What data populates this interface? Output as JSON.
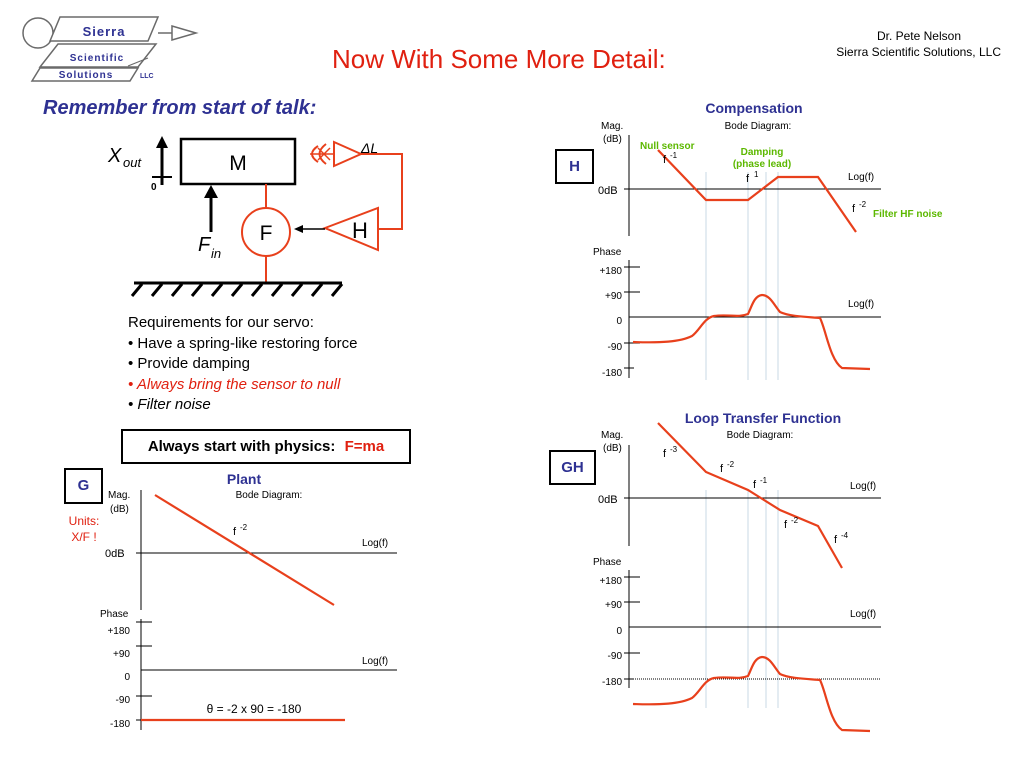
{
  "header": {
    "title": "Now With Some More Detail:",
    "author": "Dr. Pete Nelson",
    "company": "Sierra Scientific Solutions, LLC",
    "logo": {
      "line1": "Sierra",
      "line2": "Scientific",
      "line3": "Solutions",
      "suffix": "LLC"
    }
  },
  "colors": {
    "accent_red": "#e8401c",
    "title_red": "#e02010",
    "blue": "#2e3192",
    "green": "#5cb800"
  },
  "left": {
    "subtitle": "Remember from start of talk:",
    "diagram": {
      "mass_label": "M",
      "force_label": "F",
      "feedback_label": "H",
      "x_label": "X",
      "x_sub": "out",
      "zero_label": "0",
      "f_label": "F",
      "f_sub": "in",
      "delta_label": "ΔL"
    },
    "requirements": {
      "heading": "Requirements for our servo:",
      "items": [
        "• Have a spring-like restoring force",
        "• Provide damping",
        "• Always bring the sensor to null",
        "• Filter noise"
      ]
    },
    "physics_box": {
      "label": "Always start with physics:",
      "formula": "F=ma"
    },
    "plant": {
      "tag": "G",
      "units": "Units:",
      "units2": "X/F !",
      "title": "Plant",
      "bode_caption": "Bode Diagram:",
      "mag_label": "Mag.",
      "db_label": "(dB)",
      "zero_db": "0dB",
      "logf": "Log(f)",
      "slope_f": "f",
      "slope_exp": "-2",
      "phase_label": "Phase",
      "phase_ticks": [
        "+180",
        "+90",
        "0",
        "-90",
        "-180"
      ],
      "theta_eq": "θ = -2 x 90 = -180"
    }
  },
  "right": {
    "compensation": {
      "tag": "H",
      "title": "Compensation",
      "bode_caption": "Bode Diagram:",
      "mag_label": "Mag.",
      "db_label": "(dB)",
      "zero_db": "0dB",
      "logf": "Log(f)",
      "null_sensor": "Null sensor",
      "damping1": "Damping",
      "damping2": "(phase lead)",
      "filter_hf": "Filter HF noise",
      "slopes": [
        {
          "f": "f",
          "exp": "-1"
        },
        {
          "f": "f",
          "exp": "1"
        },
        {
          "f": "f",
          "exp": "-2"
        }
      ],
      "phase_label": "Phase",
      "phase_ticks": [
        "+180",
        "+90",
        "0",
        "-90",
        "-180"
      ],
      "phase_logf": "Log(f)"
    },
    "loop": {
      "tag": "GH",
      "title": "Loop Transfer Function",
      "bode_caption": "Bode Diagram:",
      "mag_label": "Mag.",
      "db_label": "(dB)",
      "zero_db": "0dB",
      "logf": "Log(f)",
      "slopes": [
        {
          "f": "f",
          "exp": "-3"
        },
        {
          "f": "f",
          "exp": "-2"
        },
        {
          "f": "f",
          "exp": "-1"
        },
        {
          "f": "f",
          "exp": "-2"
        },
        {
          "f": "f",
          "exp": "-4"
        }
      ],
      "phase_label": "Phase",
      "phase_ticks": [
        "+180",
        "+90",
        "0",
        "-90",
        "-180"
      ],
      "phase_logf": "Log(f)"
    }
  }
}
